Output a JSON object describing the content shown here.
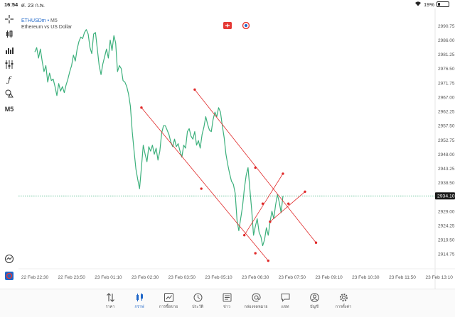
{
  "status": {
    "time": "16:54",
    "date": "ศ. 23 ก.พ.",
    "battery": "19%",
    "battery_level": 0.19
  },
  "legend": {
    "symbol": "ETHUSDm",
    "separator": "•",
    "timeframe": "M5",
    "description": "Ethereum vs US Dollar"
  },
  "toolbar": {
    "items": [
      {
        "name": "crosshair-icon"
      },
      {
        "name": "candles-icon"
      },
      {
        "name": "volume-icon"
      },
      {
        "name": "indicators-icon"
      },
      {
        "name": "function-icon"
      },
      {
        "name": "shapes-icon"
      },
      {
        "name": "timeframe-button",
        "label": "M5"
      },
      {
        "name": "trade-icon"
      },
      {
        "name": "logo-icon"
      }
    ]
  },
  "price_tag": "2934.10",
  "colors": {
    "price_line": "#3cb07c",
    "channel": "#e02828",
    "accent": "#1e66c8",
    "price_tag_bg": "#1a1a1a"
  },
  "chart_data": {
    "type": "line",
    "title": "",
    "xlabel": "",
    "ylabel": "",
    "y_ticks": [
      "2990.75",
      "2986.00",
      "2981.25",
      "2976.50",
      "2971.75",
      "2967.00",
      "2962.25",
      "2957.50",
      "2952.75",
      "2948.00",
      "2943.25",
      "2938.50",
      "2933.75",
      "2929.00",
      "2924.25",
      "2919.50",
      "2914.75"
    ],
    "x_ticks": [
      "22 Feb 22:30",
      "22 Feb 23:50",
      "23 Feb 01:10",
      "23 Feb 02:30",
      "23 Feb 03:50",
      "23 Feb 05:10",
      "23 Feb 06:30",
      "23 Feb 07:50",
      "23 Feb 09:10",
      "23 Feb 10:30",
      "23 Feb 11:50",
      "23 Feb 13:10"
    ],
    "ylim": [
      2911,
      2992.5
    ],
    "xlim_index": [
      0,
      11
    ],
    "current_price": 2934.1,
    "series": [
      {
        "values": [
          [
            0.0,
            2982.0
          ],
          [
            0.05,
            2983.5
          ],
          [
            0.1,
            2980.0
          ],
          [
            0.15,
            2983.0
          ],
          [
            0.2,
            2979.0
          ],
          [
            0.25,
            2975.5
          ],
          [
            0.3,
            2977.5
          ],
          [
            0.35,
            2972.0
          ],
          [
            0.4,
            2975.0
          ],
          [
            0.45,
            2972.5
          ],
          [
            0.5,
            2973.0
          ],
          [
            0.55,
            2970.5
          ],
          [
            0.6,
            2967.5
          ],
          [
            0.65,
            2971.5
          ],
          [
            0.7,
            2969.0
          ],
          [
            0.75,
            2970.5
          ],
          [
            0.8,
            2968.5
          ],
          [
            0.85,
            2971.0
          ],
          [
            0.9,
            2973.0
          ],
          [
            0.95,
            2975.5
          ],
          [
            1.0,
            2977.5
          ],
          [
            1.05,
            2981.0
          ],
          [
            1.1,
            2979.0
          ],
          [
            1.15,
            2983.0
          ],
          [
            1.2,
            2985.5
          ],
          [
            1.25,
            2987.0
          ],
          [
            1.3,
            2986.5
          ],
          [
            1.35,
            2988.5
          ],
          [
            1.4,
            2989.5
          ],
          [
            1.45,
            2988.0
          ],
          [
            1.5,
            2983.5
          ],
          [
            1.55,
            2981.5
          ],
          [
            1.6,
            2988.0
          ],
          [
            1.65,
            2988.5
          ],
          [
            1.7,
            2983.0
          ],
          [
            1.75,
            2977.5
          ],
          [
            1.8,
            2974.5
          ],
          [
            1.85,
            2978.0
          ],
          [
            1.9,
            2980.5
          ],
          [
            1.95,
            2983.0
          ],
          [
            2.0,
            2980.0
          ],
          [
            2.05,
            2986.0
          ],
          [
            2.1,
            2982.5
          ],
          [
            2.15,
            2987.5
          ],
          [
            2.2,
            2985.0
          ],
          [
            2.25,
            2975.5
          ],
          [
            2.3,
            2977.5
          ],
          [
            2.35,
            2976.5
          ],
          [
            2.4,
            2972.5
          ],
          [
            2.45,
            2972.0
          ],
          [
            2.5,
            2970.5
          ],
          [
            2.55,
            2968.0
          ],
          [
            2.6,
            2964.0
          ],
          [
            2.65,
            2955.5
          ],
          [
            2.7,
            2949.0
          ],
          [
            2.75,
            2943.0
          ],
          [
            2.8,
            2939.5
          ],
          [
            2.85,
            2936.5
          ],
          [
            2.9,
            2943.5
          ],
          [
            2.95,
            2951.0
          ],
          [
            3.0,
            2948.0
          ],
          [
            3.05,
            2945.5
          ],
          [
            3.1,
            2950.5
          ],
          [
            3.15,
            2949.0
          ],
          [
            3.2,
            2951.0
          ],
          [
            3.25,
            2948.0
          ],
          [
            3.3,
            2950.0
          ],
          [
            3.35,
            2946.0
          ],
          [
            3.4,
            2949.0
          ],
          [
            3.45,
            2955.0
          ],
          [
            3.5,
            2957.5
          ],
          [
            3.55,
            2957.5
          ],
          [
            3.6,
            2956.0
          ],
          [
            3.65,
            2954.5
          ],
          [
            3.7,
            2952.0
          ],
          [
            3.75,
            2950.5
          ],
          [
            3.8,
            2953.0
          ],
          [
            3.85,
            2950.5
          ],
          [
            3.9,
            2951.5
          ],
          [
            3.95,
            2949.0
          ],
          [
            4.0,
            2947.0
          ],
          [
            4.05,
            2951.0
          ],
          [
            4.1,
            2950.0
          ],
          [
            4.15,
            2955.5
          ],
          [
            4.2,
            2956.5
          ],
          [
            4.25,
            2954.0
          ],
          [
            4.3,
            2953.0
          ],
          [
            4.35,
            2955.5
          ],
          [
            4.4,
            2951.0
          ],
          [
            4.45,
            2952.5
          ],
          [
            4.5,
            2950.0
          ],
          [
            4.55,
            2954.5
          ],
          [
            4.6,
            2957.0
          ],
          [
            4.65,
            2960.5
          ],
          [
            4.7,
            2958.0
          ],
          [
            4.75,
            2956.0
          ],
          [
            4.8,
            2955.5
          ],
          [
            4.85,
            2959.5
          ],
          [
            4.9,
            2962.0
          ],
          [
            4.95,
            2960.5
          ],
          [
            5.0,
            2963.5
          ],
          [
            5.05,
            2962.0
          ],
          [
            5.1,
            2957.5
          ],
          [
            5.15,
            2953.5
          ],
          [
            5.2,
            2948.0
          ],
          [
            5.25,
            2944.5
          ],
          [
            5.3,
            2941.5
          ],
          [
            5.35,
            2939.0
          ],
          [
            5.4,
            2938.0
          ],
          [
            5.45,
            2935.0
          ],
          [
            5.5,
            2926.0
          ],
          [
            5.55,
            2922.5
          ],
          [
            5.6,
            2926.5
          ],
          [
            5.65,
            2930.5
          ],
          [
            5.7,
            2936.5
          ],
          [
            5.75,
            2941.0
          ],
          [
            5.8,
            2943.5
          ],
          [
            5.85,
            2936.5
          ],
          [
            5.9,
            2929.5
          ],
          [
            5.95,
            2921.0
          ],
          [
            6.0,
            2924.0
          ],
          [
            6.05,
            2926.5
          ],
          [
            6.1,
            2922.0
          ],
          [
            6.15,
            2920.5
          ],
          [
            6.2,
            2917.5
          ],
          [
            6.25,
            2919.5
          ],
          [
            6.3,
            2923.5
          ],
          [
            6.35,
            2921.0
          ],
          [
            6.4,
            2925.5
          ],
          [
            6.45,
            2929.0
          ],
          [
            6.5,
            2926.5
          ],
          [
            6.55,
            2931.0
          ],
          [
            6.6,
            2934.5
          ],
          [
            6.65,
            2932.0
          ],
          [
            6.7,
            2928.5
          ],
          [
            6.75,
            2934.1
          ]
        ]
      }
    ],
    "channel_lines": [
      {
        "from": [
          2.9,
          2963.5
        ],
        "to": [
          6.35,
          2912.5
        ]
      },
      {
        "from": [
          4.35,
          2969.5
        ],
        "to": [
          7.65,
          2918.5
        ]
      },
      {
        "from": [
          5.7,
          2921.0
        ],
        "to": [
          6.75,
          2941.5
        ]
      },
      {
        "from": [
          6.4,
          2925.5
        ],
        "to": [
          7.35,
          2935.5
        ]
      }
    ],
    "channel_points": [
      [
        2.9,
        2963.5
      ],
      [
        4.53,
        2936.5
      ],
      [
        6.35,
        2912.5
      ],
      [
        4.35,
        2969.5
      ],
      [
        6.0,
        2943.5
      ],
      [
        7.65,
        2918.5
      ],
      [
        5.7,
        2921.0
      ],
      [
        6.2,
        2931.5
      ],
      [
        6.75,
        2941.5
      ],
      [
        6.4,
        2925.5
      ],
      [
        6.9,
        2931.5
      ],
      [
        7.35,
        2935.5
      ],
      [
        6.0,
        2915.0
      ]
    ],
    "grid": false
  },
  "bottom_nav": [
    {
      "icon": "sort-icon",
      "label": "ราคา"
    },
    {
      "icon": "candles-icon",
      "label": "กราฟ"
    },
    {
      "icon": "chart-line-icon",
      "label": "การซื้อขาย"
    },
    {
      "icon": "history-icon",
      "label": "ประวัติ"
    },
    {
      "icon": "news-icon",
      "label": "ข่าว"
    },
    {
      "icon": "mail-icon",
      "label": "กล่องจดหมาย"
    },
    {
      "icon": "chat-icon",
      "label": "แชท"
    },
    {
      "icon": "user-icon",
      "label": "บัญชี"
    },
    {
      "icon": "gear-icon",
      "label": "การตั้งค่า"
    }
  ]
}
